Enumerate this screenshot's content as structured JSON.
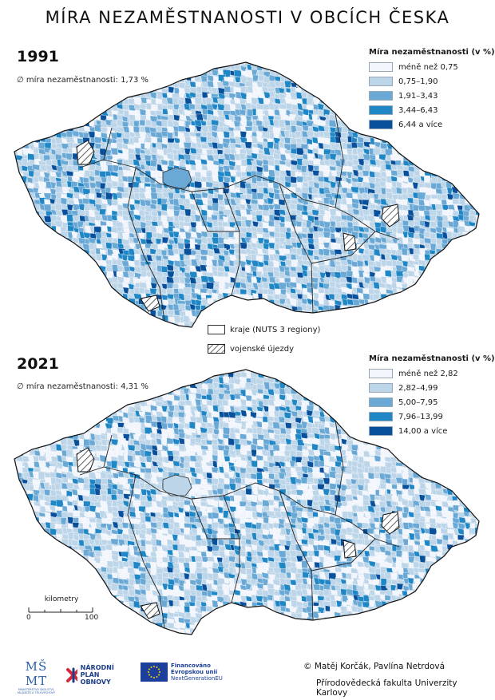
{
  "title": "MÍRA NEZAMĚSTNANOSTI V OBCÍCH ČESKA",
  "maps": [
    {
      "year": "1991",
      "average": "∅ míra nezaměstnanosti: 1,73 %",
      "legend_title": "Míra nezaměstnanosti (v %)",
      "classes": [
        {
          "label": "méně než 0,75",
          "color": "#f2f6fc"
        },
        {
          "label": "0,75–1,90",
          "color": "#bcd5e9"
        },
        {
          "label": "1,91–3,43",
          "color": "#6aa9d5"
        },
        {
          "label": "3,44–6,43",
          "color": "#1f87c6"
        },
        {
          "label": "6,44 a více",
          "color": "#08509b"
        }
      ]
    },
    {
      "year": "2021",
      "average": "∅ míra nezaměstnanosti: 4,31 %",
      "legend_title": "Míra nezaměstnanosti (v %)",
      "classes": [
        {
          "label": "méně než 2,82",
          "color": "#f2f6fc"
        },
        {
          "label": "2,82–4,99",
          "color": "#bcd5e9"
        },
        {
          "label": "5,00–7,95",
          "color": "#6aa9d5"
        },
        {
          "label": "7,96–13,99",
          "color": "#1f87c6"
        },
        {
          "label": "14,00 a více",
          "color": "#08509b"
        }
      ]
    }
  ],
  "boundary_legend": {
    "regions": "kraje (NUTS 3 regiony)",
    "military": "vojenské újezdy"
  },
  "scale": {
    "unit": "kilometry",
    "min": "0",
    "max": "100"
  },
  "credits": {
    "authors": "© Matěj Korčák, Pavlína Netrdová",
    "institution": "Přírodovědecká fakulta Univerzity Karlovy"
  },
  "logos": {
    "msmt": "MINISTERSTVO ŠKOLSTVÍ, MLÁDEŽE A TĚLOVÝCHOVY",
    "npo_line1": "NÁRODNÍ",
    "npo_line2": "PLÁN OBNOVY",
    "eu_line1": "Financováno",
    "eu_line2": "Evropskou unií",
    "eu_line3": "NextGenerationEU"
  }
}
